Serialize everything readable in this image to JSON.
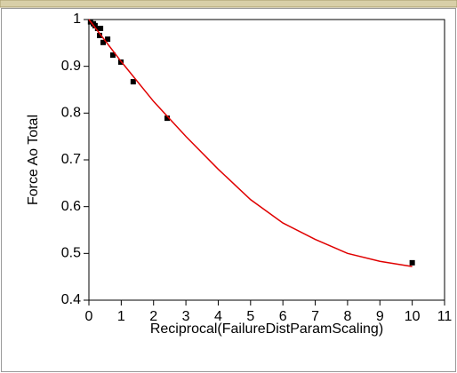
{
  "chart_data": {
    "type": "scatter",
    "xlabel": "Reciprocal(FailureDistParamScaling)",
    "ylabel": "Force Ao Total",
    "xlim": [
      0,
      11
    ],
    "xticks": [
      0,
      1,
      2,
      3,
      4,
      5,
      6,
      7,
      8,
      9,
      10,
      11
    ],
    "ylim": [
      0.4,
      1
    ],
    "yticks": [
      0.4,
      0.5,
      0.6,
      0.7,
      0.8,
      0.9,
      1
    ],
    "series": [
      {
        "color": "#000000",
        "mode": "markers",
        "x": [
          0.05,
          0.14,
          0.19,
          0.27,
          0.36,
          0.33,
          0.44,
          0.58,
          0.74,
          0.99,
          1.37,
          2.42,
          10
        ],
        "values": [
          0.995,
          0.991,
          0.987,
          0.981,
          0.981,
          0.966,
          0.951,
          0.958,
          0.924,
          0.909,
          0.867,
          0.789,
          0.48
        ]
      },
      {
        "color": "#e00000",
        "mode": "line",
        "x": [
          0,
          0.5,
          1,
          2,
          3,
          4,
          5,
          6,
          7,
          8,
          9,
          10
        ],
        "values": [
          1,
          0.955,
          0.91,
          0.825,
          0.75,
          0.68,
          0.615,
          0.565,
          0.53,
          0.5,
          0.483,
          0.472
        ]
      }
    ]
  }
}
